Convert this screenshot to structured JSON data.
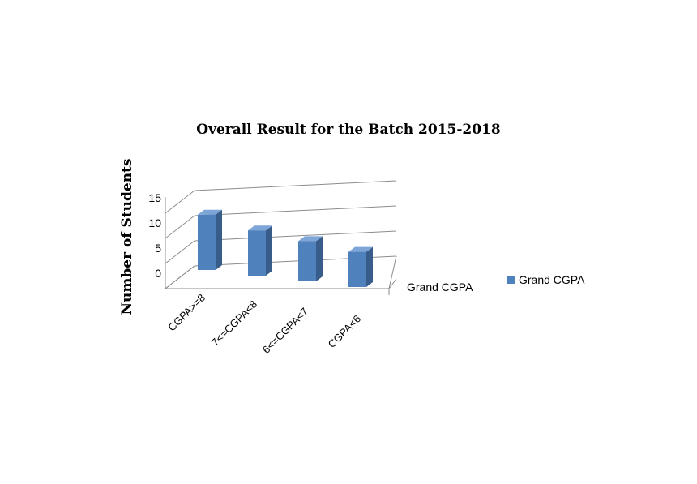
{
  "chart_data": {
    "type": "bar",
    "title": "Overall Result for the Batch 2015-2018",
    "xlabel": "",
    "ylabel": "Number of Students",
    "categories": [
      "CGPA>=8",
      "7<=CGPA<8",
      "6<=CGPA<7",
      "CGPA<6"
    ],
    "depth_label": "Grand CGPA",
    "series": [
      {
        "name": "Grand CGPA",
        "values": [
          11,
          9,
          8,
          7
        ]
      }
    ],
    "ylim": [
      0,
      15
    ],
    "yticks": [
      "0",
      "5",
      "10",
      "15"
    ],
    "grid": true,
    "legend": "right",
    "style": "3d",
    "colors": {
      "bar_front": "#4f81bd",
      "bar_side": "#385d8a",
      "bar_top": "#7ea5d8",
      "grid": "#8c8c8c"
    }
  }
}
